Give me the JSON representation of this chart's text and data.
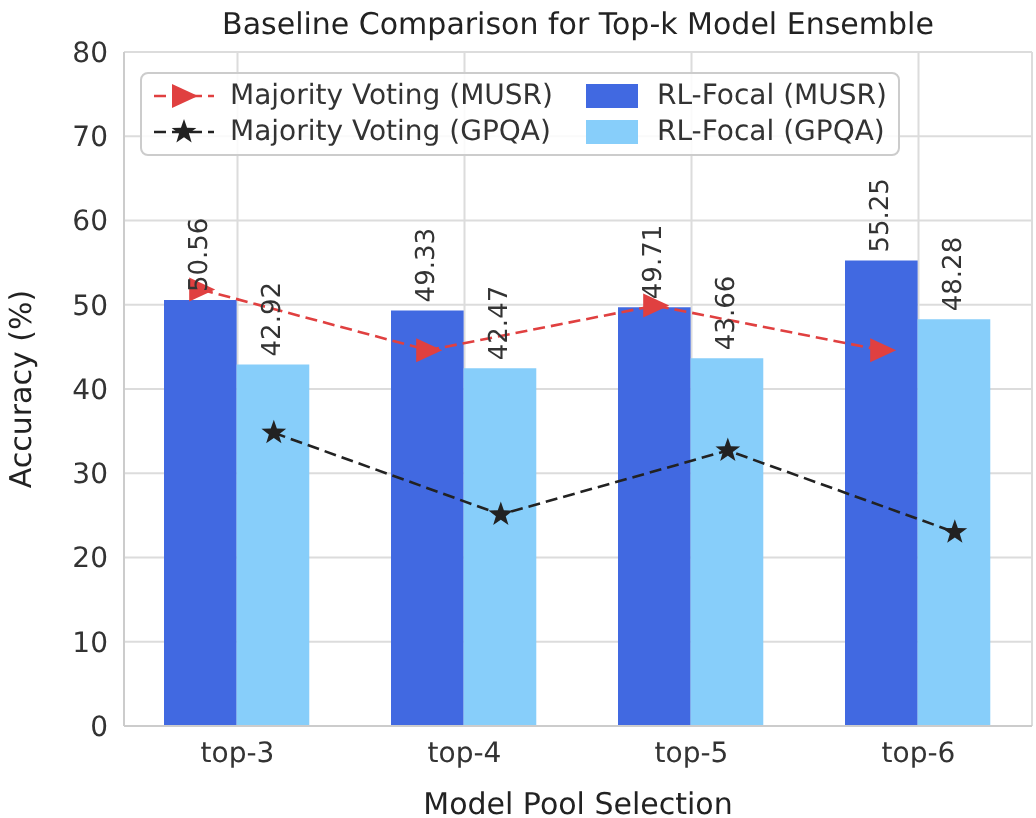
{
  "chart_data": {
    "type": "bar",
    "title": "Baseline Comparison for Top-k Model Ensemble",
    "xlabel": "Model Pool Selection",
    "ylabel": "Accuracy (%)",
    "categories": [
      "top-3",
      "top-4",
      "top-5",
      "top-6"
    ],
    "series": [
      {
        "name": "Majority Voting (MUSR)",
        "type": "line",
        "color": "#e04040",
        "marker": "triangle",
        "line_style": "dashed",
        "values": [
          51.8,
          44.6,
          49.9,
          44.6
        ]
      },
      {
        "name": "Majority Voting (GPQA)",
        "type": "line",
        "color": "#222222",
        "marker": "star",
        "line_style": "dashed",
        "values": [
          34.8,
          25.1,
          32.7,
          23.0
        ]
      },
      {
        "name": "RL-Focal (MUSR)",
        "color": "#4169e1",
        "values": [
          50.56,
          49.33,
          49.71,
          55.25
        ],
        "value_labels": [
          "50.56",
          "49.33",
          "49.71",
          "55.25"
        ]
      },
      {
        "name": "RL-Focal (GPQA)",
        "color": "#87cefa",
        "values": [
          42.92,
          42.47,
          43.66,
          48.28
        ],
        "value_labels": [
          "42.92",
          "42.47",
          "43.66",
          "48.28"
        ]
      }
    ],
    "ylim": [
      0,
      80
    ],
    "yticks": [
      0,
      10,
      20,
      30,
      40,
      50,
      60,
      70,
      80
    ],
    "grid": true,
    "legend": "top"
  }
}
